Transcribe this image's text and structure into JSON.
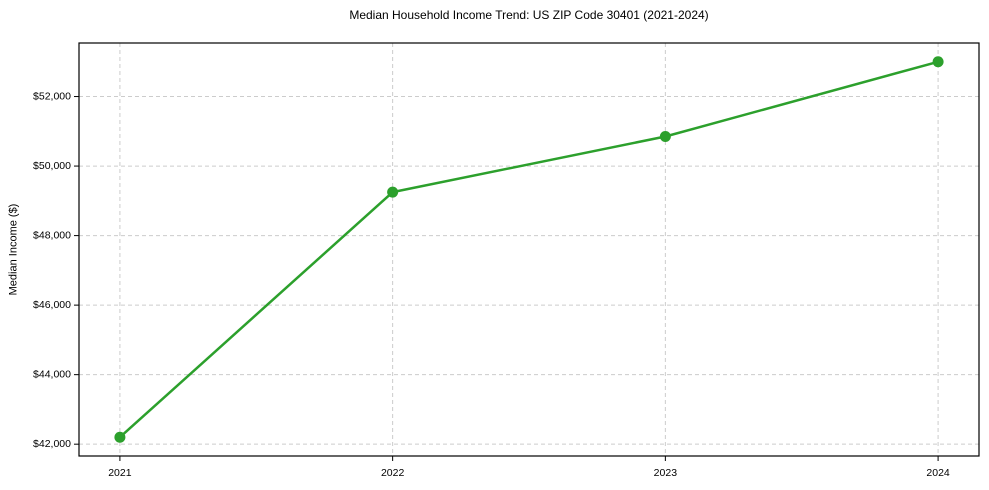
{
  "figure": {
    "background": "#ffffff"
  },
  "chart_data": {
    "type": "line",
    "title": "Median Household Income Trend: US ZIP Code 30401 (2021-2024)",
    "xlabel": "",
    "ylabel": "Median Income ($)",
    "x": [
      2021,
      2022,
      2023,
      2024
    ],
    "series": [
      {
        "name": "Median Household Income",
        "values": [
          42200,
          49250,
          50850,
          53000
        ]
      }
    ],
    "xtick_labels": [
      "2021",
      "2022",
      "2023",
      "2024"
    ],
    "ytick_values": [
      42000,
      44000,
      46000,
      48000,
      50000,
      52000
    ],
    "ytick_labels": [
      "$42,000",
      "$44,000",
      "$46,000",
      "$48,000",
      "$50,000",
      "$52,000"
    ],
    "xlim": [
      2020.85,
      2024.15
    ],
    "ylim": [
      41660,
      53540
    ],
    "grid": true,
    "grid_style": "dashed",
    "legend_position": "none",
    "marker": "circle",
    "colors": {
      "line": "#2ca02c",
      "marker": "#2ca02c",
      "grid": "#cccccc",
      "axis": "#000000",
      "text": "#000000",
      "background": "#ffffff"
    }
  }
}
